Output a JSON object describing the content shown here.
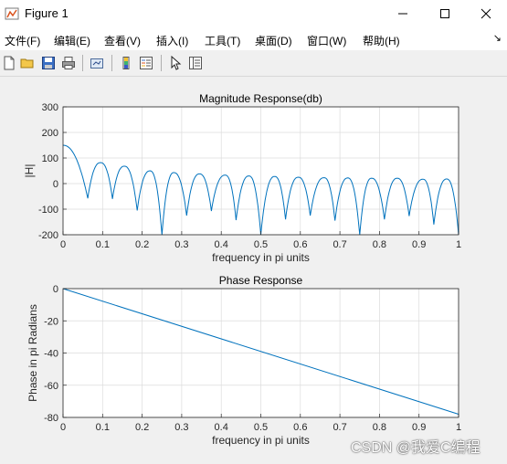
{
  "window": {
    "title": "Figure 1"
  },
  "menu": [
    "文件(F)",
    "编辑(E)",
    "查看(V)",
    "插入(I)",
    "工具(T)",
    "桌面(D)",
    "窗口(W)",
    "帮助(H)"
  ],
  "toolbar": [
    "new-figure",
    "open-file",
    "save",
    "print",
    "link-plot",
    "insert-colorbar",
    "insert-legend",
    "edit-plot",
    "property-inspector"
  ],
  "chart_data": [
    {
      "type": "line",
      "title": "Magnitude Response(db)",
      "xlabel": "frequency in pi units",
      "ylabel": "|H|",
      "xlim": [
        0,
        1
      ],
      "ylim": [
        -200,
        300
      ],
      "xticks": [
        "0",
        "0.1",
        "0.2",
        "0.3",
        "0.4",
        "0.5",
        "0.6",
        "0.7",
        "0.8",
        "0.9",
        "1"
      ],
      "yticks": [
        "300",
        "200",
        "100",
        "0",
        "-100",
        "-200"
      ],
      "grid": true,
      "series": [
        {
          "color": "#0072bd",
          "peaks": [
            [
              0,
              150
            ],
            [
              0.095,
              82
            ],
            [
              0.155,
              68
            ],
            [
              0.22,
              50
            ],
            [
              0.28,
              43
            ],
            [
              0.345,
              38
            ],
            [
              0.41,
              33
            ],
            [
              0.47,
              30
            ],
            [
              0.535,
              28
            ],
            [
              0.595,
              25
            ],
            [
              0.66,
              23
            ],
            [
              0.72,
              22
            ],
            [
              0.78,
              21
            ],
            [
              0.845,
              21
            ],
            [
              0.91,
              17
            ],
            [
              0.97,
              18
            ]
          ],
          "nulls": [
            [
              0.0625,
              -58
            ],
            [
              0.125,
              -60
            ],
            [
              0.1875,
              -105
            ],
            [
              0.25,
              -200
            ],
            [
              0.3125,
              -125
            ],
            [
              0.375,
              -107
            ],
            [
              0.4375,
              -143
            ],
            [
              0.5,
              -200
            ],
            [
              0.5625,
              -140
            ],
            [
              0.625,
              -125
            ],
            [
              0.6875,
              -145
            ],
            [
              0.75,
              -200
            ],
            [
              0.8125,
              -140
            ],
            [
              0.875,
              -127
            ],
            [
              0.9375,
              -160
            ],
            [
              1.0,
              -200
            ]
          ]
        }
      ]
    },
    {
      "type": "line",
      "title": "Phase Response",
      "xlabel": "frequency in pi units",
      "ylabel": "Phase in pi Radians",
      "xlim": [
        0,
        1
      ],
      "ylim": [
        -80,
        0
      ],
      "xticks": [
        "0",
        "0.1",
        "0.2",
        "0.3",
        "0.4",
        "0.5",
        "0.6",
        "0.7",
        "0.8",
        "0.9",
        "1"
      ],
      "yticks": [
        "0",
        "-20",
        "-40",
        "-60",
        "-80"
      ],
      "grid": true,
      "series": [
        {
          "color": "#0072bd",
          "x": [
            0,
            1
          ],
          "y": [
            0,
            -78
          ]
        }
      ]
    }
  ],
  "watermark": "CSDN @我爱C编程"
}
